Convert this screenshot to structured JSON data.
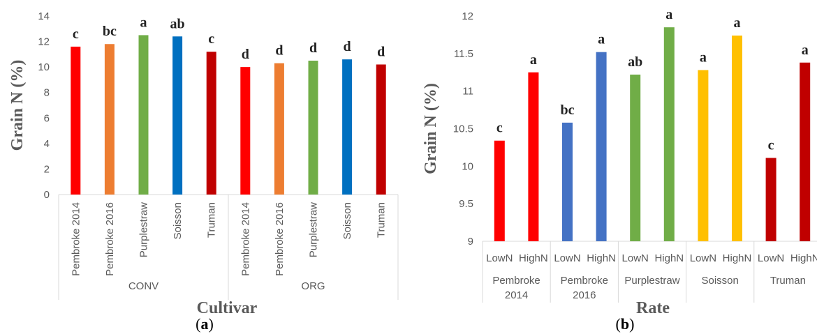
{
  "chart_data": [
    {
      "type": "bar",
      "panel_label": {
        "open": "(",
        "letter": "a",
        "close": ")"
      },
      "title": "",
      "xlabel": "Cultivar",
      "ylabel": "Grain N (%)",
      "ylim": [
        0,
        14
      ],
      "yticks": [
        "0",
        "2",
        "4",
        "6",
        "8",
        "10",
        "12",
        "14"
      ],
      "groups": [
        {
          "label": "CONV",
          "categories": [
            "Pembroke 2014",
            "Pembroke 2016",
            "Purplestraw",
            "Soisson",
            "Truman"
          ],
          "values": [
            11.6,
            11.8,
            12.5,
            12.4,
            11.2
          ],
          "letters": [
            "c",
            "bc",
            "a",
            "ab",
            "c"
          ],
          "colors": [
            "#FF0000",
            "#ED7D31",
            "#70AD47",
            "#0070C0",
            "#C00000"
          ]
        },
        {
          "label": "ORG",
          "categories": [
            "Pembroke 2014",
            "Pembroke 2016",
            "Purplestraw",
            "Soisson",
            "Truman"
          ],
          "values": [
            10.0,
            10.3,
            10.5,
            10.6,
            10.2
          ],
          "letters": [
            "d",
            "d",
            "d",
            "d",
            "d"
          ],
          "colors": [
            "#FF0000",
            "#ED7D31",
            "#70AD47",
            "#0070C0",
            "#C00000"
          ]
        }
      ],
      "grid": false,
      "legend": "none"
    },
    {
      "type": "bar",
      "panel_label": {
        "open": "(",
        "letter": "b",
        "close": ")"
      },
      "title": "",
      "xlabel": "Rate",
      "ylabel": "Grain N (%)",
      "ylim": [
        9,
        12
      ],
      "yticks": [
        "9",
        "9.5",
        "10",
        "10.5",
        "11",
        "11.5",
        "12"
      ],
      "groups": [
        {
          "label_lines": [
            "Pembroke",
            "2014"
          ],
          "categories": [
            "LowN",
            "HighN"
          ],
          "values": [
            10.34,
            11.25
          ],
          "letters": [
            "c",
            "a"
          ],
          "colors": [
            "#FF0000",
            "#FF0000"
          ]
        },
        {
          "label_lines": [
            "Pembroke",
            "2016"
          ],
          "categories": [
            "LowN",
            "HighN"
          ],
          "values": [
            10.58,
            11.52
          ],
          "letters": [
            "bc",
            "a"
          ],
          "colors": [
            "#4472C4",
            "#4472C4"
          ]
        },
        {
          "label_lines": [
            "Purplestraw"
          ],
          "categories": [
            "LowN",
            "HighN"
          ],
          "values": [
            11.22,
            11.85
          ],
          "letters": [
            "ab",
            "a"
          ],
          "colors": [
            "#70AD47",
            "#70AD47"
          ]
        },
        {
          "label_lines": [
            "Soisson"
          ],
          "categories": [
            "LowN",
            "HighN"
          ],
          "values": [
            11.28,
            11.74
          ],
          "letters": [
            "a",
            "a"
          ],
          "colors": [
            "#FFC000",
            "#FFC000"
          ]
        },
        {
          "label_lines": [
            "Truman"
          ],
          "categories": [
            "LowN",
            "HighN"
          ],
          "values": [
            10.11,
            11.38
          ],
          "letters": [
            "c",
            "a"
          ],
          "colors": [
            "#C00000",
            "#C00000"
          ]
        }
      ],
      "grid": false,
      "legend": "none"
    }
  ]
}
